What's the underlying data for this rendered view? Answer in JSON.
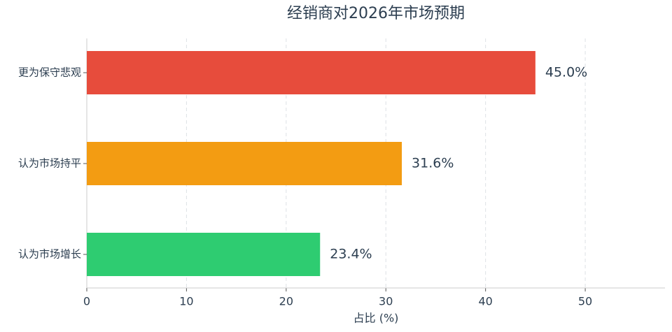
{
  "chart_data": {
    "type": "barh",
    "title": "经销商对2026年市场预期",
    "categories": [
      "更为保守悲观",
      "认为市场持平",
      "认为市场增长"
    ],
    "values": [
      45.0,
      31.6,
      23.4
    ],
    "value_labels": [
      "45.0%",
      "31.6%",
      "23.4%"
    ],
    "colors": [
      "#e74c3c",
      "#f39c12",
      "#2ecc71"
    ],
    "xlabel": "占比 (%)",
    "xlim": [
      0,
      58
    ],
    "xticks": [
      0,
      10,
      20,
      30,
      40,
      50
    ],
    "grid": true
  }
}
